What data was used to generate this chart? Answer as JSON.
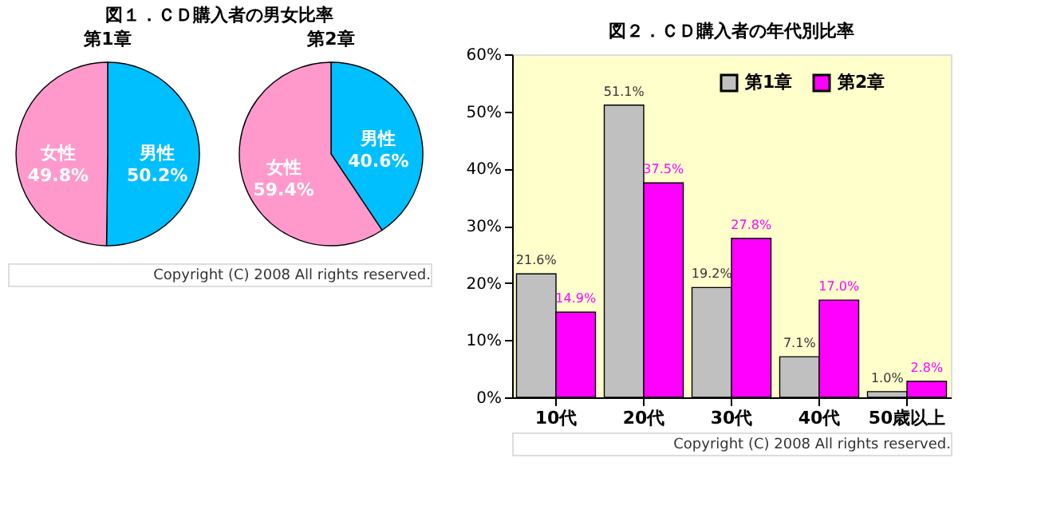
{
  "chart_data": [
    {
      "type": "pie",
      "title": "図１．ＣＤ購入者の男女比率",
      "subtitle": "第1章",
      "categories": [
        "男性",
        "女性"
      ],
      "values": [
        50.2,
        49.8
      ],
      "colors": [
        "#00bfff",
        "#ff99cc"
      ],
      "value_labels": [
        "50.2%",
        "49.8%"
      ]
    },
    {
      "type": "pie",
      "title": "第2章",
      "categories": [
        "男性",
        "女性"
      ],
      "values": [
        40.6,
        59.4
      ],
      "colors": [
        "#00bfff",
        "#ff99cc"
      ],
      "value_labels": [
        "40.6%",
        "59.4%"
      ],
      "annotations": [
        "Copyright (C) 2008 All rights reserved."
      ]
    },
    {
      "type": "bar",
      "title": "図２．ＣＤ購入者の年代別比率",
      "categories": [
        "10代",
        "20代",
        "30代",
        "40代",
        "50歳以上"
      ],
      "series": [
        {
          "name": "第1章",
          "color": "#c0c0c0",
          "values": [
            21.6,
            51.1,
            19.2,
            7.1,
            1.0
          ],
          "value_labels": [
            "21.6%",
            "51.1%",
            "19.2%",
            "7.1%",
            "1.0%"
          ]
        },
        {
          "name": "第2章",
          "color": "#ff00ff",
          "values": [
            14.9,
            37.5,
            27.8,
            17.0,
            2.8
          ],
          "value_labels": [
            "14.9%",
            "37.5%",
            "27.8%",
            "17.0%",
            "2.8%"
          ]
        }
      ],
      "ylim": [
        0,
        60
      ],
      "yticks": [
        {
          "value": 0,
          "label": "0%"
        },
        {
          "value": 10,
          "label": "10%"
        },
        {
          "value": 20,
          "label": "20%"
        },
        {
          "value": 30,
          "label": "30%"
        },
        {
          "value": 40,
          "label": "40%"
        },
        {
          "value": 50,
          "label": "50%"
        },
        {
          "value": 60,
          "label": "60%"
        }
      ],
      "legend": "top right",
      "annotations": [
        "Copyright (C) 2008 All rights reserved."
      ]
    }
  ]
}
